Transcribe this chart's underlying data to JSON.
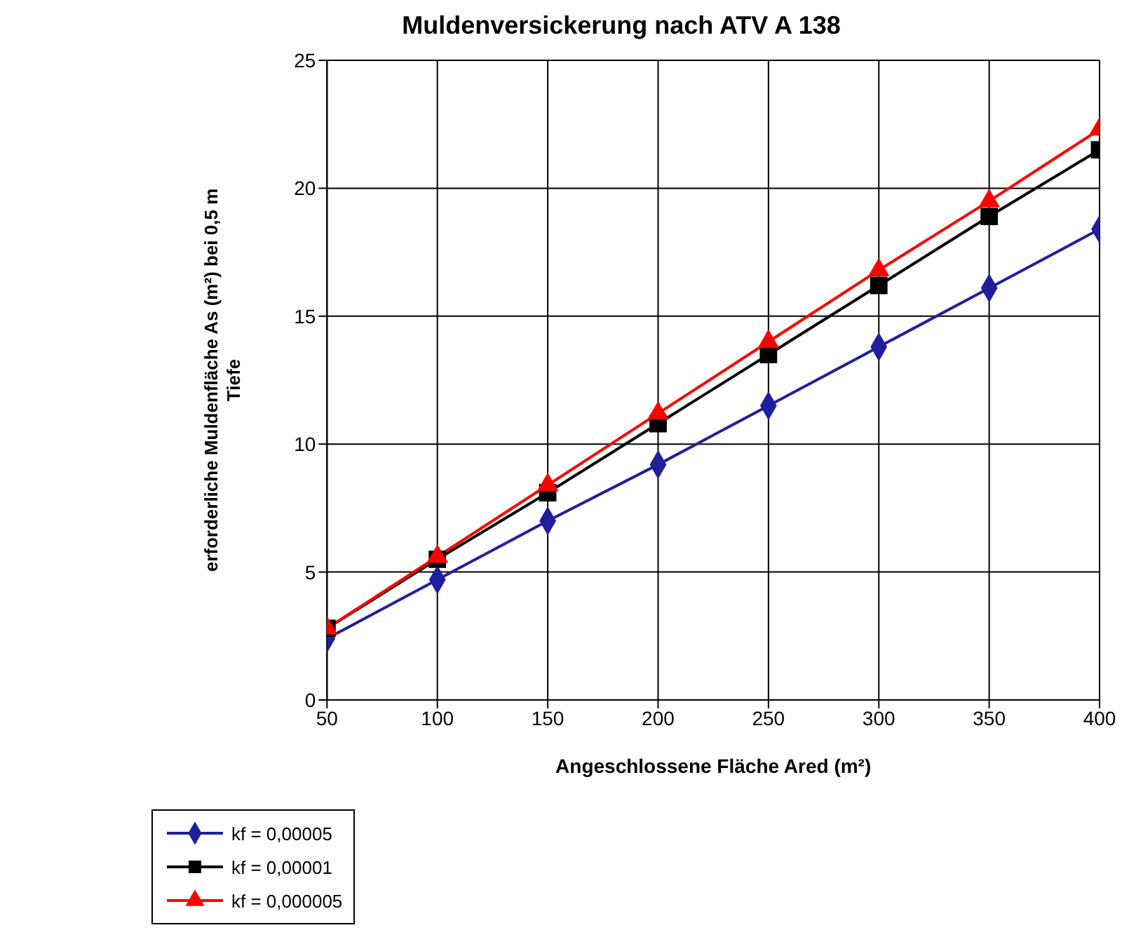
{
  "chart_data": {
    "type": "line",
    "title": "Muldenversickerung nach ATV A 138",
    "xlabel": "Angeschlossene Fläche Ared (m²)",
    "ylabel": "erforderliche Muldenfläche As (m²) bei 0,5 m Tiefe",
    "x": [
      50,
      100,
      150,
      200,
      250,
      300,
      350,
      400
    ],
    "series": [
      {
        "name": "kf = 0,00005",
        "color": "#1f1f9e",
        "marker": "diamond",
        "values": [
          2.4,
          4.7,
          7.0,
          9.2,
          11.5,
          13.8,
          16.1,
          18.4
        ]
      },
      {
        "name": "kf = 0,00001",
        "color": "#000000",
        "marker": "square",
        "values": [
          2.8,
          5.5,
          8.1,
          10.8,
          13.5,
          16.2,
          18.9,
          21.5
        ]
      },
      {
        "name": "kf = 0,000005",
        "color": "#ff0000",
        "marker": "triangle",
        "values": [
          2.8,
          5.6,
          8.4,
          11.2,
          14.0,
          16.8,
          19.5,
          22.3
        ]
      }
    ],
    "xlim": [
      50,
      400
    ],
    "xticks": [
      50,
      100,
      150,
      200,
      250,
      300,
      350,
      400
    ],
    "ylim": [
      0,
      25
    ],
    "yticks": [
      0,
      5,
      10,
      15,
      20,
      25
    ],
    "grid": true,
    "legend": "bottom left",
    "line_style": "solid"
  }
}
